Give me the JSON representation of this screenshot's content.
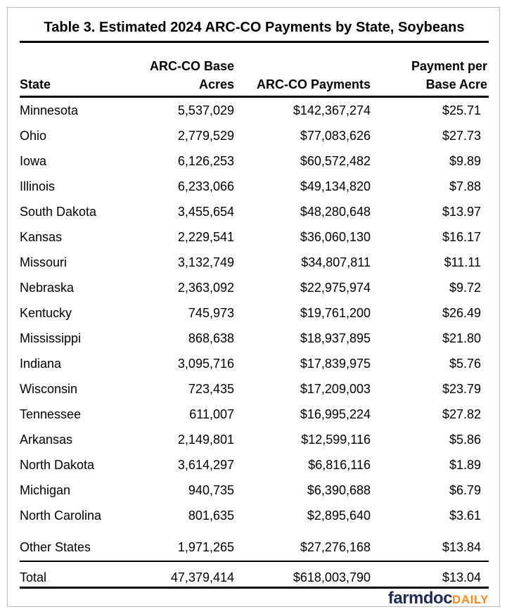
{
  "title": "Table 3. Estimated 2024 ARC-CO Payments by State, Soybeans",
  "table": {
    "header": {
      "state": "State",
      "base_acres_line1": "ARC-CO Base",
      "base_acres_line2": "Acres",
      "payments": "ARC-CO Payments",
      "per_acre_line1": "Payment per",
      "per_acre_line2": "Base Acre"
    },
    "rows": [
      {
        "state": "Minnesota",
        "base_acres": "5,537,029",
        "payments": "$142,367,274",
        "per_acre": "$25.71"
      },
      {
        "state": "Ohio",
        "base_acres": "2,779,529",
        "payments": "$77,083,626",
        "per_acre": "$27.73"
      },
      {
        "state": "Iowa",
        "base_acres": "6,126,253",
        "payments": "$60,572,482",
        "per_acre": "$9.89"
      },
      {
        "state": "Illinois",
        "base_acres": "6,233,066",
        "payments": "$49,134,820",
        "per_acre": "$7.88"
      },
      {
        "state": "South Dakota",
        "base_acres": "3,455,654",
        "payments": "$48,280,648",
        "per_acre": "$13.97"
      },
      {
        "state": "Kansas",
        "base_acres": "2,229,541",
        "payments": "$36,060,130",
        "per_acre": "$16.17"
      },
      {
        "state": "Missouri",
        "base_acres": "3,132,749",
        "payments": "$34,807,811",
        "per_acre": "$11.11"
      },
      {
        "state": "Nebraska",
        "base_acres": "2,363,092",
        "payments": "$22,975,974",
        "per_acre": "$9.72"
      },
      {
        "state": "Kentucky",
        "base_acres": "745,973",
        "payments": "$19,761,200",
        "per_acre": "$26.49"
      },
      {
        "state": "Mississippi",
        "base_acres": "868,638",
        "payments": "$18,937,895",
        "per_acre": "$21.80"
      },
      {
        "state": "Indiana",
        "base_acres": "3,095,716",
        "payments": "$17,839,975",
        "per_acre": "$5.76"
      },
      {
        "state": "Wisconsin",
        "base_acres": "723,435",
        "payments": "$17,209,003",
        "per_acre": "$23.79"
      },
      {
        "state": "Tennessee",
        "base_acres": "611,007",
        "payments": "$16,995,224",
        "per_acre": "$27.82"
      },
      {
        "state": "Arkansas",
        "base_acres": "2,149,801",
        "payments": "$12,599,116",
        "per_acre": "$5.86"
      },
      {
        "state": "North Dakota",
        "base_acres": "3,614,297",
        "payments": "$6,816,116",
        "per_acre": "$1.89"
      },
      {
        "state": "Michigan",
        "base_acres": "940,735",
        "payments": "$6,390,688",
        "per_acre": "$6.79"
      },
      {
        "state": "North Carolina",
        "base_acres": "801,635",
        "payments": "$2,895,640",
        "per_acre": "$3.61"
      },
      {
        "state": "Other States",
        "base_acres": "1,971,265",
        "payments": "$27,276,168",
        "per_acre": "$13.84",
        "group": "other-states"
      }
    ],
    "total_row": {
      "state": "Total",
      "base_acres": "47,379,414",
      "payments": "$618,003,790",
      "per_acre": "$13.04"
    }
  },
  "logo": {
    "farmdoc_text": "farmdoc",
    "daily_text": "DAILY",
    "farmdoc_color": "#1f2b52",
    "daily_color": "#f6891f"
  },
  "chart_data": {
    "type": "table",
    "title": "Table 3. Estimated 2024 ARC-CO Payments by State, Soybeans",
    "columns": [
      "State",
      "ARC-CO Base Acres",
      "ARC-CO Payments",
      "Payment per Base Acre"
    ],
    "rows": [
      [
        "Minnesota",
        5537029,
        142367274,
        25.71
      ],
      [
        "Ohio",
        2779529,
        77083626,
        27.73
      ],
      [
        "Iowa",
        6126253,
        60572482,
        9.89
      ],
      [
        "Illinois",
        6233066,
        49134820,
        7.88
      ],
      [
        "South Dakota",
        3455654,
        48280648,
        13.97
      ],
      [
        "Kansas",
        2229541,
        36060130,
        16.17
      ],
      [
        "Missouri",
        3132749,
        34807811,
        11.11
      ],
      [
        "Nebraska",
        2363092,
        22975974,
        9.72
      ],
      [
        "Kentucky",
        745973,
        19761200,
        26.49
      ],
      [
        "Mississippi",
        868638,
        18937895,
        21.8
      ],
      [
        "Indiana",
        3095716,
        17839975,
        5.76
      ],
      [
        "Wisconsin",
        723435,
        17209003,
        23.79
      ],
      [
        "Tennessee",
        611007,
        16995224,
        27.82
      ],
      [
        "Arkansas",
        2149801,
        12599116,
        5.86
      ],
      [
        "North Dakota",
        3614297,
        6816116,
        1.89
      ],
      [
        "Michigan",
        940735,
        6390688,
        6.79
      ],
      [
        "North Carolina",
        801635,
        2895640,
        3.61
      ],
      [
        "Other States",
        1971265,
        27276168,
        13.84
      ]
    ],
    "total": [
      "Total",
      47379414,
      618003790,
      13.04
    ]
  }
}
